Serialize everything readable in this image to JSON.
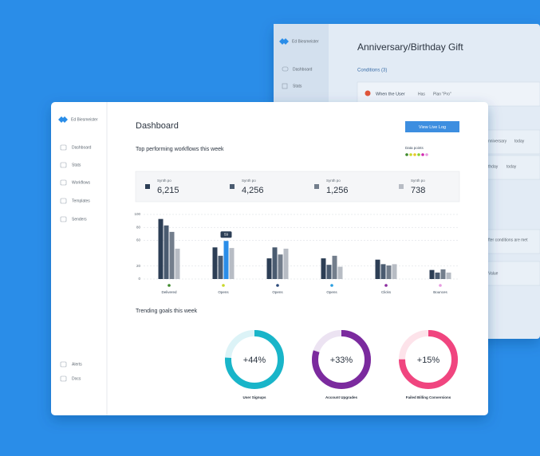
{
  "back_window": {
    "user": "Ed Biesmeister",
    "nav": [
      "Dashboard",
      "Stats"
    ],
    "title": "Anniversary/Birthday Gift",
    "conditions_heading": "Conditions (3)",
    "condition": [
      "When the User",
      "Has",
      "Plan \"Pro\""
    ],
    "fragments": [
      "nniversary",
      "today",
      "thday",
      "today",
      "fter conditions are met",
      "Value"
    ]
  },
  "sidebar": {
    "user": "Ed Biesmeister",
    "nav": [
      "Dashboard",
      "Stats",
      "Workflows",
      "Templates",
      "Senders"
    ],
    "footer_nav": [
      "Alerts",
      "Docs"
    ]
  },
  "header": {
    "title": "Dashboard",
    "button": "View Live Log"
  },
  "chart_data": {
    "type": "bar",
    "title": "Top performing workflows this week",
    "legend_title": "Data points",
    "categories": [
      "Delivered",
      "Opens",
      "Opens",
      "Opens",
      "Clicks",
      "Bounces"
    ],
    "category_colors": [
      "#3f8a2c",
      "#c9d82c",
      "#2c4a7a",
      "#2a9ee0",
      "#8b2a9e",
      "#e79be0"
    ],
    "series": [
      {
        "name": "Synth po",
        "total": "6,215",
        "color": "#2c3e55",
        "values": [
          93,
          49,
          32,
          32,
          30,
          14
        ]
      },
      {
        "name": "Synth po",
        "total": "4,256",
        "color": "#4a5b70",
        "values": [
          83,
          36,
          49,
          22,
          23,
          10
        ]
      },
      {
        "name": "Synth po",
        "total": "1,256",
        "color": "#737e8c",
        "values": [
          73,
          59,
          38,
          36,
          21,
          15
        ]
      },
      {
        "name": "Synth po",
        "total": "738",
        "color": "#b7bcc4",
        "values": [
          47,
          48,
          47,
          19,
          23,
          10
        ]
      }
    ],
    "ylim": [
      0,
      100
    ],
    "yticks": [
      0,
      20,
      60,
      80,
      100
    ],
    "grid": true,
    "highlight": {
      "series": 2,
      "index": 1,
      "color": "#2a8de8"
    }
  },
  "goals": {
    "title": "Trending goals this week",
    "items": [
      {
        "name": "User Signups",
        "label": "+44%",
        "progress": 76,
        "color": "#19b5c9",
        "track": "#dcf3f7"
      },
      {
        "name": "Account Upgrades",
        "label": "+33%",
        "progress": 80,
        "color": "#7b2a9e",
        "track": "#ece3f2"
      },
      {
        "name": "Failed Billing Conversions",
        "label": "+15%",
        "progress": 75,
        "color": "#f0457f",
        "track": "#fde3ea"
      }
    ]
  }
}
